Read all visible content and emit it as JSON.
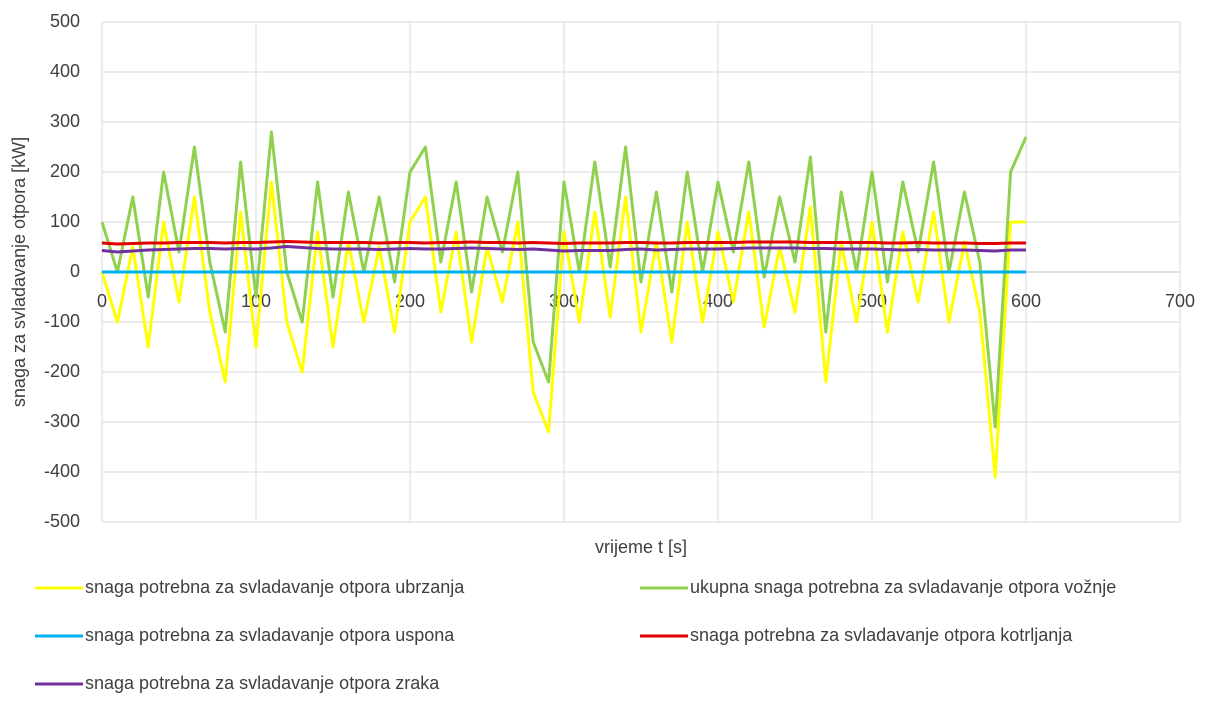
{
  "chart_data": {
    "type": "line",
    "xlabel": "vrijeme t [s]",
    "ylabel": "snaga za svladavanje otpora [kW]",
    "xlim": [
      0,
      700
    ],
    "xticks": [
      0,
      100,
      200,
      300,
      400,
      500,
      600,
      700
    ],
    "ylim": [
      -500,
      500
    ],
    "yticks": [
      -500,
      -400,
      -300,
      -200,
      -100,
      0,
      100,
      200,
      300,
      400,
      500
    ],
    "grid": true,
    "x": [
      0,
      10,
      20,
      30,
      40,
      50,
      60,
      70,
      80,
      90,
      100,
      110,
      120,
      130,
      140,
      150,
      160,
      170,
      180,
      190,
      200,
      210,
      220,
      230,
      240,
      250,
      260,
      270,
      280,
      290,
      300,
      310,
      320,
      330,
      340,
      350,
      360,
      370,
      380,
      390,
      400,
      410,
      420,
      430,
      440,
      450,
      460,
      470,
      480,
      490,
      500,
      510,
      520,
      530,
      540,
      550,
      560,
      570,
      580,
      590,
      600
    ],
    "series": [
      {
        "name": "snaga potrebna za svladavanje otpora ubrzanja",
        "color": "#ffff00",
        "values": [
          0,
          -100,
          50,
          -150,
          100,
          -60,
          150,
          -80,
          -220,
          120,
          -150,
          180,
          -100,
          -200,
          80,
          -150,
          60,
          -100,
          50,
          -120,
          100,
          150,
          -80,
          80,
          -140,
          50,
          -60,
          100,
          -240,
          -320,
          80,
          -100,
          120,
          -90,
          150,
          -120,
          60,
          -140,
          100,
          -100,
          80,
          -60,
          120,
          -110,
          50,
          -80,
          130,
          -220,
          60,
          -100,
          100,
          -120,
          80,
          -60,
          120,
          -100,
          60,
          -80,
          -410,
          100,
          100
        ]
      },
      {
        "name": "ukupna snaga potrebna za svladavanje otpora vožnje",
        "color": "#8fd14f",
        "values": [
          100,
          0,
          150,
          -50,
          200,
          40,
          250,
          20,
          -120,
          220,
          -50,
          280,
          0,
          -100,
          180,
          -50,
          160,
          0,
          150,
          -20,
          200,
          250,
          20,
          180,
          -40,
          150,
          40,
          200,
          -140,
          -220,
          180,
          0,
          220,
          10,
          250,
          -20,
          160,
          -40,
          200,
          0,
          180,
          40,
          220,
          -10,
          150,
          20,
          230,
          -120,
          160,
          0,
          200,
          -20,
          180,
          40,
          220,
          0,
          160,
          20,
          -310,
          200,
          270
        ]
      },
      {
        "name": "snaga potrebna za svladavanje otpora uspona",
        "color": "#00b0f0",
        "values": [
          0,
          0,
          0,
          0,
          0,
          0,
          0,
          0,
          0,
          0,
          0,
          0,
          0,
          0,
          0,
          0,
          0,
          0,
          0,
          0,
          0,
          0,
          0,
          0,
          0,
          0,
          0,
          0,
          0,
          0,
          0,
          0,
          0,
          0,
          0,
          0,
          0,
          0,
          0,
          0,
          0,
          0,
          0,
          0,
          0,
          0,
          0,
          0,
          0,
          0,
          0,
          0,
          0,
          0,
          0,
          0,
          0,
          0,
          0,
          0,
          0
        ]
      },
      {
        "name": "snaga potrebna za svladavanje otpora kotrljanja",
        "color": "#e00000",
        "values": [
          58,
          56,
          57,
          58,
          58,
          59,
          59,
          59,
          58,
          59,
          59,
          60,
          61,
          60,
          59,
          59,
          59,
          59,
          58,
          59,
          59,
          58,
          59,
          59,
          60,
          59,
          59,
          58,
          59,
          58,
          57,
          58,
          58,
          58,
          59,
          59,
          58,
          58,
          59,
          59,
          59,
          59,
          60,
          60,
          60,
          60,
          59,
          59,
          59,
          59,
          59,
          58,
          58,
          59,
          58,
          58,
          58,
          57,
          57,
          58,
          58
        ]
      },
      {
        "name": "snaga potrebna za svladavanje otpora zraka",
        "color": "#7030a0",
        "values": [
          43,
          40,
          42,
          44,
          45,
          46,
          47,
          47,
          46,
          47,
          46,
          48,
          51,
          49,
          47,
          46,
          46,
          46,
          45,
          46,
          47,
          46,
          46,
          47,
          48,
          47,
          46,
          45,
          46,
          44,
          42,
          43,
          43,
          43,
          45,
          46,
          44,
          45,
          46,
          46,
          46,
          47,
          48,
          48,
          48,
          48,
          47,
          47,
          46,
          46,
          46,
          45,
          44,
          45,
          44,
          44,
          44,
          43,
          42,
          44,
          44
        ]
      }
    ]
  }
}
